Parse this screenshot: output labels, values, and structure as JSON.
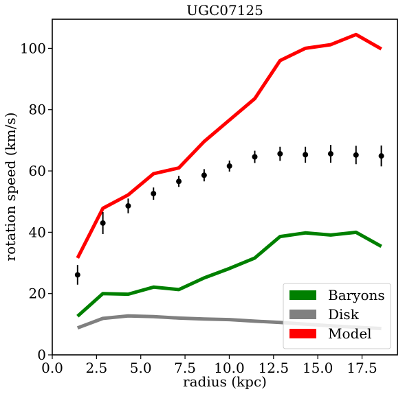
{
  "chart_data": {
    "type": "line",
    "title": "UGC07125",
    "xlabel": "radius (kpc)",
    "ylabel": "rotation speed (km/s)",
    "xlim": [
      0.0,
      19.5
    ],
    "ylim": [
      0,
      109.5
    ],
    "xticks": [
      "0.0",
      "2.5",
      "5.0",
      "7.5",
      "10.0",
      "12.5",
      "15.0",
      "17.5"
    ],
    "yticks": [
      "0",
      "20",
      "40",
      "60",
      "80",
      "100"
    ],
    "legend_position": "lower-right",
    "x": [
      1.43,
      2.86,
      4.29,
      5.72,
      7.15,
      8.58,
      10.01,
      11.44,
      12.87,
      14.3,
      15.73,
      17.16,
      18.59
    ],
    "series": [
      {
        "name": "Baryons",
        "color": "#008000",
        "values": [
          12.6,
          20.0,
          19.8,
          22.1,
          21.3,
          25.1,
          28.2,
          31.6,
          38.6,
          39.8,
          39.1,
          40.0,
          35.4
        ]
      },
      {
        "name": "Disk",
        "color": "#808080",
        "values": [
          8.8,
          11.9,
          12.7,
          12.5,
          12.0,
          11.7,
          11.5,
          11.0,
          10.6,
          10.0,
          9.5,
          9.0,
          8.6
        ]
      },
      {
        "name": "Model",
        "color": "#ff0000",
        "values": [
          31.6,
          47.8,
          52.2,
          59.1,
          61.0,
          69.6,
          76.6,
          83.6,
          96.0,
          100.0,
          101.2,
          104.5,
          99.8
        ]
      }
    ],
    "observed": {
      "color": "#000000",
      "values": [
        26.1,
        43.0,
        48.6,
        52.6,
        56.6,
        58.6,
        61.6,
        64.6,
        65.6,
        65.3,
        65.6,
        65.2,
        64.9
      ],
      "errors": [
        3.2,
        3.6,
        2.4,
        2.0,
        1.8,
        2.0,
        1.8,
        2.0,
        2.3,
        2.6,
        2.9,
        3.0,
        3.4
      ]
    }
  }
}
